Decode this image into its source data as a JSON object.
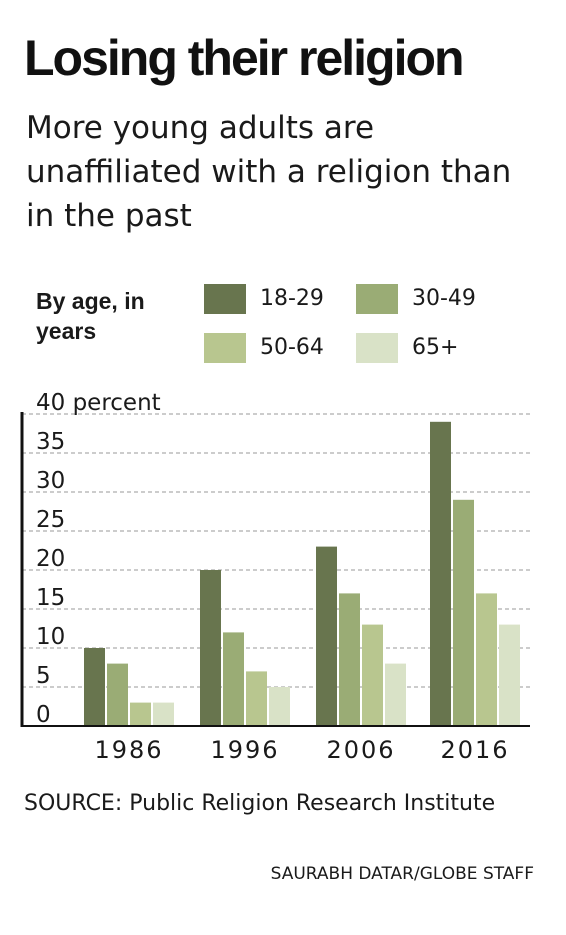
{
  "header": {
    "title": "Losing their religion",
    "subtitle": "More young adults are unaffiliated with a religion than in the past"
  },
  "legend": {
    "title": "By age, in years"
  },
  "chart_data": {
    "type": "bar",
    "categories": [
      "1986",
      "1996",
      "2006",
      "2016"
    ],
    "series": [
      {
        "name": "18-29",
        "color": "#68754e",
        "values": [
          10,
          20,
          23,
          39
        ]
      },
      {
        "name": "30-49",
        "color": "#9aac75",
        "values": [
          8,
          12,
          17,
          29
        ]
      },
      {
        "name": "50-64",
        "color": "#b8c68f",
        "values": [
          3,
          7,
          13,
          17
        ]
      },
      {
        "name": "65+",
        "color": "#d9e2c7",
        "values": [
          3,
          5,
          8,
          13
        ]
      }
    ],
    "yticks": [
      0,
      5,
      10,
      15,
      20,
      25,
      30,
      35
    ],
    "ytop_label": "40 percent",
    "ylim": [
      0,
      40
    ],
    "grid": true,
    "legend_position": "top"
  },
  "footer": {
    "source": "SOURCE: Public Religion Research Institute",
    "credit": "SAURABH DATAR/GLOBE STAFF"
  }
}
